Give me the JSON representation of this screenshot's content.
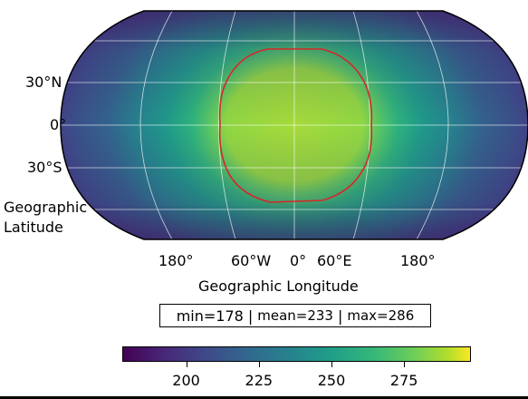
{
  "map": {
    "projection": "robinson",
    "lat_ticks": [
      "30°N",
      "0°",
      "30°S"
    ],
    "lat_axis_label_line1": "Geographic",
    "lat_axis_label_line2": "Latitude",
    "lon_ticks": [
      "180°",
      "60°W",
      "0°",
      "60°E",
      "180°"
    ],
    "lon_axis_label": "Geographic Longitude",
    "contour_color": "#d62728",
    "gridline_color": "#ffffff",
    "colormap": "viridis"
  },
  "stats": {
    "min": "min=178",
    "mean": "mean=233",
    "max": "max=286",
    "separator": "|"
  },
  "colorbar": {
    "range": [
      178,
      298
    ],
    "ticks": [
      200,
      225,
      250,
      275
    ],
    "tick_labels": [
      "200",
      "225",
      "250",
      "275"
    ]
  }
}
